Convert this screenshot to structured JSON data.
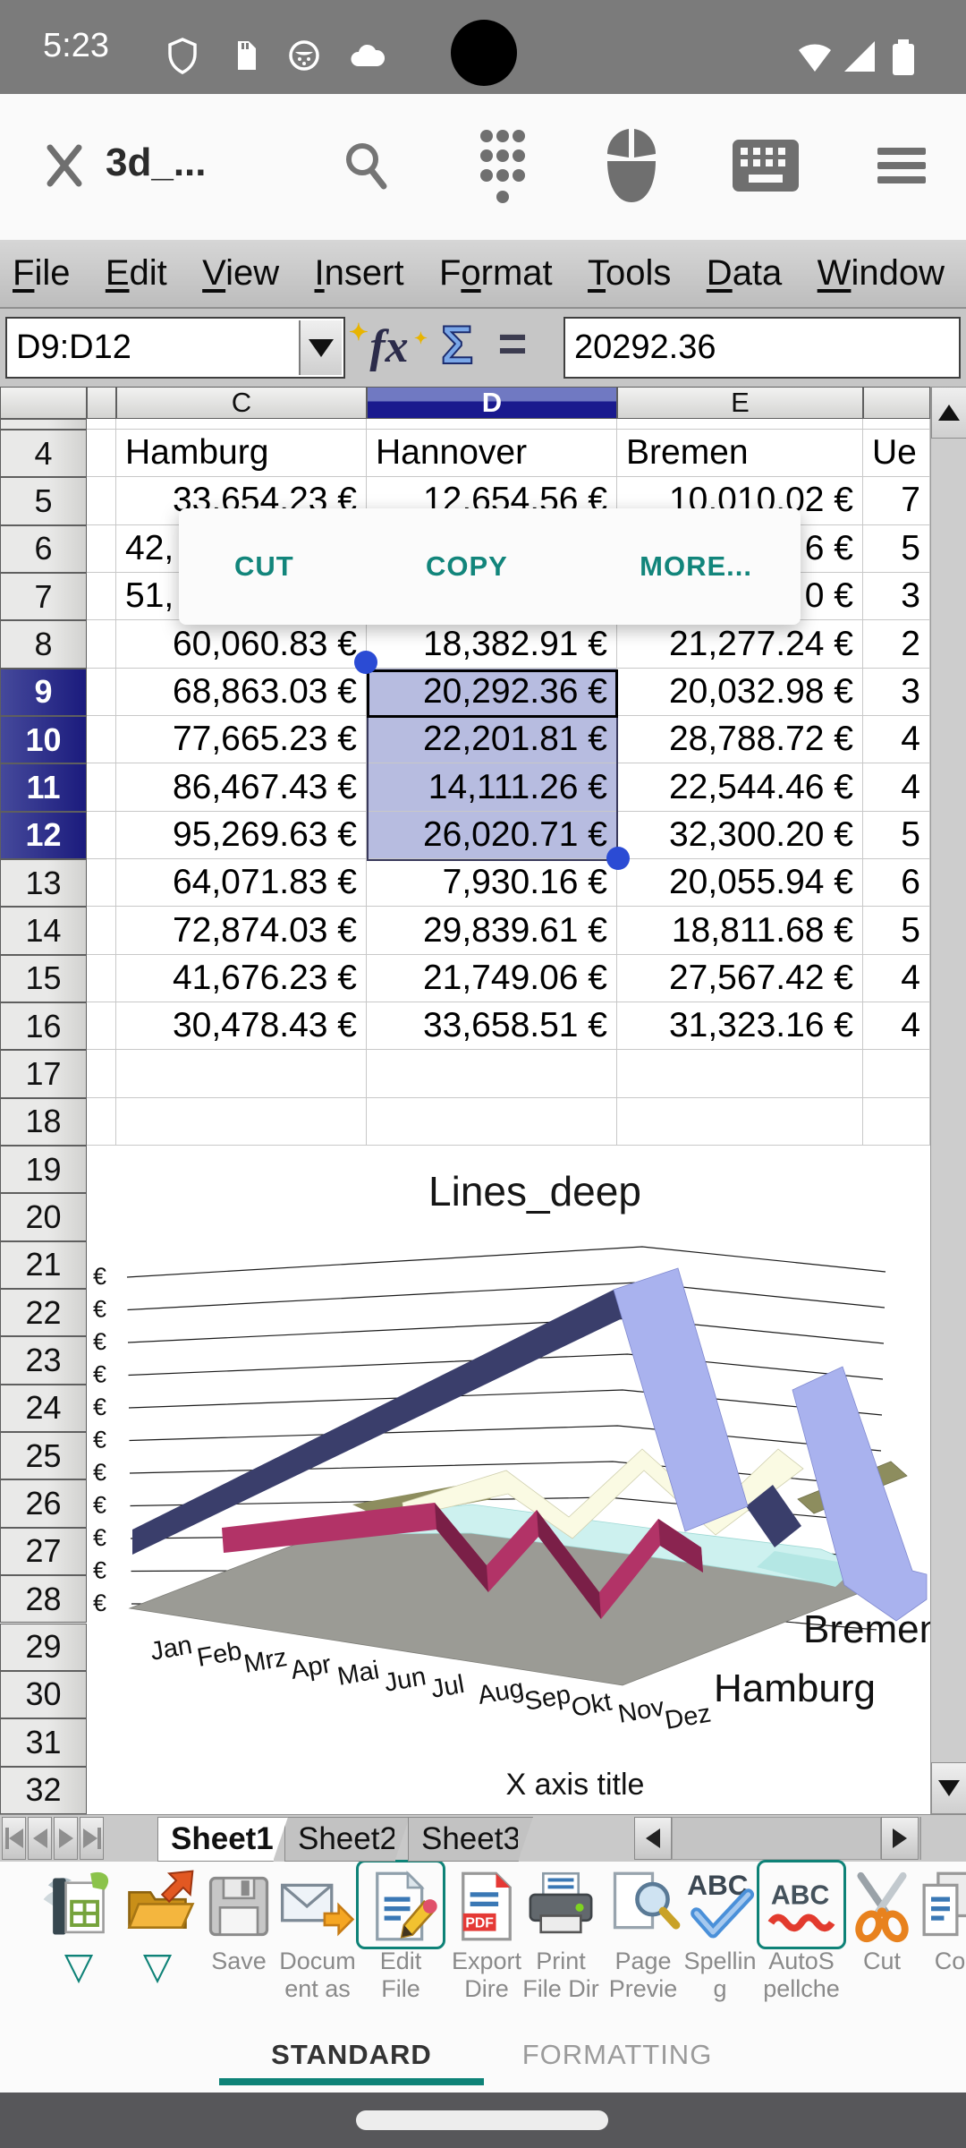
{
  "status_bar": {
    "time": "5:23"
  },
  "app_bar": {
    "title": "3d_..."
  },
  "menu_bar": {
    "items": [
      {
        "label": "File",
        "u": 0
      },
      {
        "label": "Edit",
        "u": 0
      },
      {
        "label": "View",
        "u": 0
      },
      {
        "label": "Insert",
        "u": 0
      },
      {
        "label": "Format",
        "u": 1
      },
      {
        "label": "Tools",
        "u": 0
      },
      {
        "label": "Data",
        "u": 0
      },
      {
        "label": "Window",
        "u": 0
      }
    ]
  },
  "formula_bar": {
    "name_box": "D9:D12",
    "value": "20292.36",
    "fx_label": "fx",
    "sum_label": "Σ",
    "equals_label": "="
  },
  "sheet": {
    "column_letters": [
      "",
      "C",
      "D",
      "E",
      ""
    ],
    "selected_column": "D",
    "selected_rows": [
      9,
      10,
      11,
      12
    ],
    "selection_range": "D9:D12",
    "active_cell": "D9",
    "partial_row_number": 3,
    "rows": [
      {
        "n": 4,
        "cells": [
          "Hamburg",
          "Hannover",
          "Bremen",
          "Ue"
        ],
        "text": true
      },
      {
        "n": 5,
        "cells": [
          "33,654.23 €",
          "12,654.56 €",
          "10,010.02 €",
          "7"
        ]
      },
      {
        "n": 6,
        "cells": [
          "42,",
          "",
          "6 €",
          "5"
        ],
        "frag": true
      },
      {
        "n": 7,
        "cells": [
          "51,",
          "",
          "0 €",
          "3"
        ],
        "frag": true
      },
      {
        "n": 8,
        "cells": [
          "60,060.83 €",
          "18,382.91 €",
          "21,277.24 €",
          "2"
        ]
      },
      {
        "n": 9,
        "cells": [
          "68,863.03 €",
          "20,292.36 €",
          "20,032.98 €",
          "3"
        ]
      },
      {
        "n": 10,
        "cells": [
          "77,665.23 €",
          "22,201.81 €",
          "28,788.72 €",
          "4"
        ]
      },
      {
        "n": 11,
        "cells": [
          "86,467.43 €",
          "14,111.26 €",
          "22,544.46 €",
          "4"
        ]
      },
      {
        "n": 12,
        "cells": [
          "95,269.63 €",
          "26,020.71 €",
          "32,300.20 €",
          "5"
        ]
      },
      {
        "n": 13,
        "cells": [
          "64,071.83 €",
          "7,930.16 €",
          "20,055.94 €",
          "6"
        ]
      },
      {
        "n": 14,
        "cells": [
          "72,874.03 €",
          "29,839.61 €",
          "18,811.68 €",
          "5"
        ]
      },
      {
        "n": 15,
        "cells": [
          "41,676.23 €",
          "21,749.06 €",
          "27,567.42 €",
          "4"
        ]
      },
      {
        "n": 16,
        "cells": [
          "30,478.43 €",
          "33,658.51 €",
          "31,323.16 €",
          "4"
        ]
      },
      {
        "n": 17,
        "cells": [
          "",
          "",
          "",
          ""
        ]
      },
      {
        "n": 18,
        "cells": [
          "",
          "",
          "",
          ""
        ]
      }
    ],
    "row_numbers_continued": [
      19,
      20,
      21,
      22,
      23,
      24,
      25,
      26,
      27,
      28,
      29,
      30,
      31,
      32
    ]
  },
  "context_menu": {
    "items": [
      "CUT",
      "COPY",
      "MORE..."
    ]
  },
  "chart_data": {
    "type": "line",
    "subtype": "3d-deep-ribbon",
    "title": "Lines_deep",
    "x_axis_title": "X axis title",
    "categories": [
      "Jan",
      "Feb",
      "Mrz",
      "Apr",
      "Mai",
      "Jun",
      "Jul",
      "Aug",
      "Sep",
      "Okt",
      "Nov",
      "Dez"
    ],
    "series": [
      {
        "name": "Hamburg",
        "values": [
          33654.23,
          null,
          null,
          60060.83,
          68863.03,
          77665.23,
          86467.43,
          95269.63,
          64071.83,
          72874.03,
          41676.23,
          30478.43
        ]
      },
      {
        "name": "Hannover",
        "values": [
          12654.56,
          null,
          null,
          18382.91,
          20292.36,
          22201.81,
          14111.26,
          26020.71,
          7930.16,
          29839.61,
          21749.06,
          33658.51
        ]
      },
      {
        "name": "Bremen",
        "values": [
          10010.02,
          null,
          null,
          21277.24,
          20032.98,
          28788.72,
          22544.46,
          32300.2,
          20055.94,
          18811.68,
          27567.42,
          31323.16
        ]
      }
    ],
    "y_tick_label": "€",
    "y_tick_count": 11,
    "depth_axis_labels": [
      "Bremen",
      "Hamburg"
    ],
    "legend": "none",
    "grid": true
  },
  "tab_bar": {
    "sheets": [
      "Sheet1",
      "Sheet2",
      "Sheet3"
    ],
    "active": "Sheet1"
  },
  "toolbar": {
    "buttons": [
      {
        "name": "new-document",
        "icon": "newdoc",
        "lines": [],
        "dropdown": true
      },
      {
        "name": "open-file",
        "icon": "open",
        "lines": [],
        "dropdown": true
      },
      {
        "name": "save",
        "icon": "save",
        "lines": [
          "Save"
        ]
      },
      {
        "name": "document-as",
        "icon": "docas",
        "lines": [
          "Docum",
          "ent as"
        ]
      },
      {
        "name": "edit-file",
        "icon": "edit",
        "lines": [
          "Edit",
          "File"
        ],
        "selected": true
      },
      {
        "name": "export-dire",
        "icon": "pdf",
        "lines": [
          "Export",
          "Dire"
        ]
      },
      {
        "name": "print-file-dir",
        "icon": "print",
        "lines": [
          "Print",
          "File Dir"
        ]
      },
      {
        "name": "page-preview",
        "icon": "preview",
        "lines": [
          "Page",
          "Previe"
        ]
      },
      {
        "name": "spelling",
        "icon": "spell",
        "lines": [
          "Spellin",
          "g"
        ]
      },
      {
        "name": "autospellcheck",
        "icon": "autospell",
        "lines": [
          "AutoS",
          "pellche"
        ],
        "selected": true
      },
      {
        "name": "cut",
        "icon": "cut",
        "lines": [
          "Cut"
        ]
      },
      {
        "name": "copy",
        "icon": "copy",
        "lines": [
          "Co"
        ]
      }
    ]
  },
  "bottom_tabs": {
    "standard": "STANDARD",
    "formatting": "FORMATTING",
    "active": "STANDARD"
  },
  "accent_color": "#0e8277"
}
